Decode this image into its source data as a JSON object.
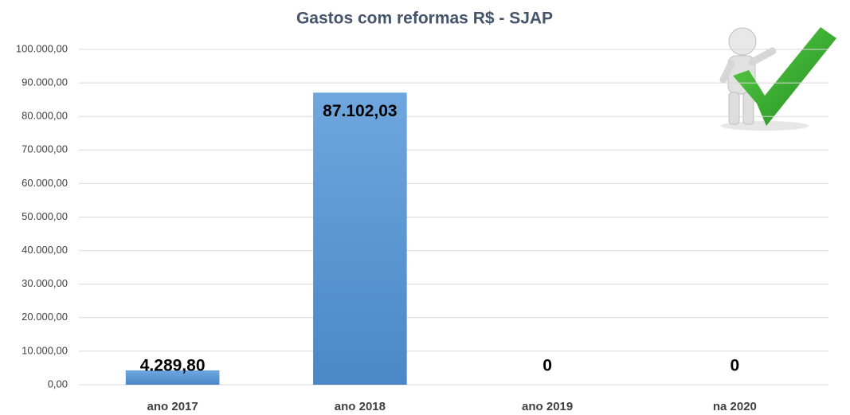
{
  "chart_data": {
    "type": "bar",
    "title": "Gastos com reformas R$ - SJAP",
    "categories": [
      "ano 2017",
      "ano 2018",
      "ano 2019",
      "na 2020"
    ],
    "values": [
      4289.8,
      87102.03,
      0,
      0
    ],
    "value_labels": [
      "4.289,80",
      "87.102,03",
      "0",
      "0"
    ],
    "color": "#5b9bd5",
    "ylim": [
      0,
      100000
    ],
    "yticks": [
      {
        "value": 0,
        "label": "0,00"
      },
      {
        "value": 10000,
        "label": "10.000,00"
      },
      {
        "value": 20000,
        "label": "20.000,00"
      },
      {
        "value": 30000,
        "label": "30.000,00"
      },
      {
        "value": 40000,
        "label": "40.000,00"
      },
      {
        "value": 50000,
        "label": "50.000,00"
      },
      {
        "value": 60000,
        "label": "60.000,00"
      },
      {
        "value": 70000,
        "label": "70.000,00"
      },
      {
        "value": 80000,
        "label": "80.000,00"
      },
      {
        "value": 90000,
        "label": "90.000,00"
      },
      {
        "value": 100000,
        "label": "100.000,00"
      }
    ],
    "grid": true
  }
}
